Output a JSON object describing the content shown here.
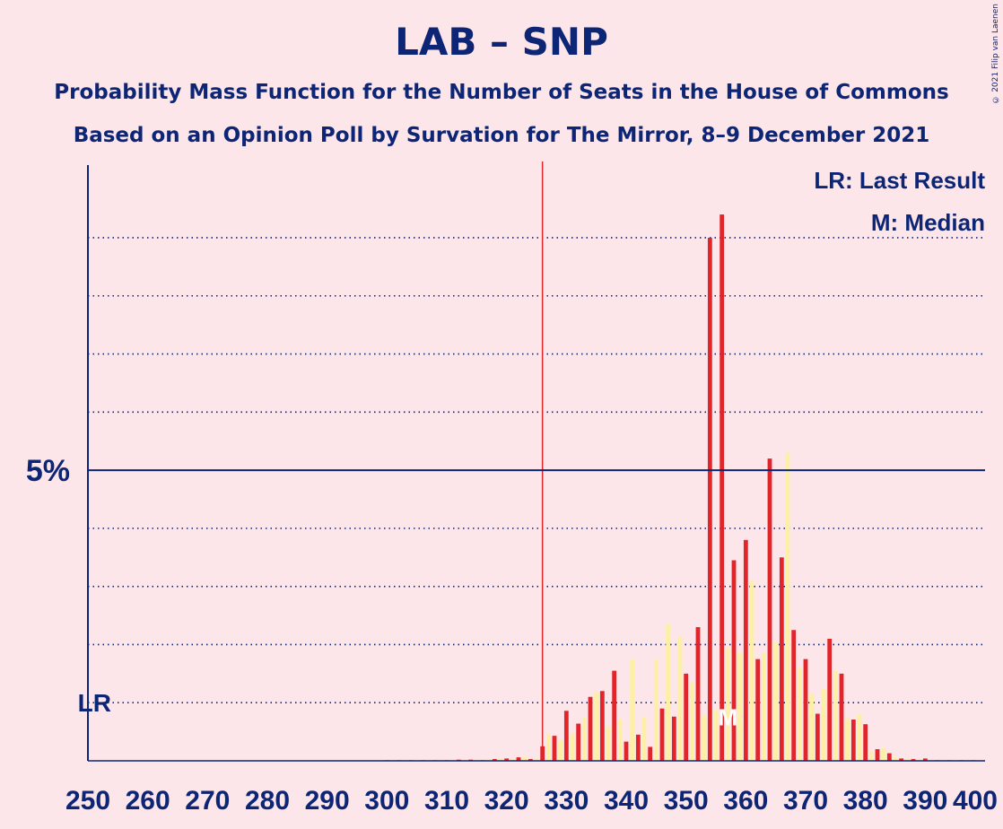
{
  "title": "LAB – SNP",
  "subtitle1": "Probability Mass Function for the Number of Seats in the House of Commons",
  "subtitle2": "Based on an Opinion Poll by Survation for The Mirror, 8–9 December 2021",
  "copyright": "© 2021 Filip van Laenen",
  "colors": {
    "background": "#fde6ea",
    "text": "#0d2575",
    "bar_a": "#e0262a",
    "bar_b": "#fdf0a6",
    "last_result": "#e0262a"
  },
  "chart_data": {
    "type": "bar",
    "xlim": [
      250,
      400
    ],
    "ylim": [
      0,
      10.25
    ],
    "x_ticks": [
      "250",
      "260",
      "270",
      "280",
      "290",
      "300",
      "310",
      "320",
      "330",
      "340",
      "350",
      "360",
      "370",
      "380",
      "390",
      "400"
    ],
    "y_tick_label": "5%",
    "y_tick_value": 5,
    "gridlines": [
      1,
      2,
      3,
      4,
      6,
      7,
      8,
      9
    ],
    "legend": [
      "LR: Last Result",
      "M: Median"
    ],
    "last_result": {
      "label": "LR",
      "seat": 326,
      "lr_level": 1
    },
    "median": {
      "label": "M",
      "seat": 357
    },
    "x": [
      300,
      301,
      302,
      303,
      304,
      305,
      306,
      307,
      308,
      309,
      310,
      311,
      312,
      313,
      314,
      315,
      316,
      317,
      318,
      319,
      320,
      321,
      322,
      323,
      324,
      325,
      326,
      327,
      328,
      329,
      330,
      331,
      332,
      333,
      334,
      335,
      336,
      337,
      338,
      339,
      340,
      341,
      342,
      343,
      344,
      345,
      346,
      347,
      348,
      349,
      350,
      351,
      352,
      353,
      354,
      355,
      356,
      357,
      358,
      359,
      360,
      361,
      362,
      363,
      364,
      365,
      366,
      367,
      368,
      369,
      370,
      371,
      372,
      373,
      374,
      375,
      376,
      377,
      378,
      379,
      380,
      381,
      382,
      383,
      384,
      385,
      386,
      387,
      388,
      389,
      390,
      391,
      392,
      393,
      394,
      395,
      396,
      397,
      398,
      399
    ],
    "values": [
      0.01,
      0.01,
      0.01,
      0.01,
      0.01,
      0.01,
      0.01,
      0.01,
      0.01,
      0.01,
      0.01,
      0.01,
      0.02,
      0.01,
      0.02,
      0.02,
      0.01,
      0.02,
      0.03,
      0.03,
      0.04,
      0.04,
      0.06,
      0.07,
      0.03,
      0.04,
      0.25,
      0.46,
      0.43,
      0.36,
      0.86,
      0.47,
      0.64,
      0.75,
      1.1,
      1.18,
      1.2,
      0.6,
      1.55,
      0.71,
      0.33,
      1.75,
      0.45,
      0.76,
      0.24,
      1.75,
      0.9,
      2.35,
      0.76,
      2.15,
      1.5,
      1.35,
      2.3,
      0.77,
      9.0,
      0.87,
      9.4,
      1.95,
      3.45,
      1.85,
      3.8,
      3.1,
      1.75,
      1.85,
      5.2,
      2.05,
      3.5,
      5.3,
      2.25,
      1.6,
      1.75,
      1.15,
      0.81,
      1.25,
      2.1,
      1.55,
      1.5,
      0.73,
      0.71,
      0.8,
      0.63,
      0.16,
      0.2,
      0.22,
      0.13,
      0.06,
      0.04,
      0.04,
      0.03,
      0.02,
      0.04,
      0.01,
      0.01,
      0.01,
      0.01,
      0.01,
      0.01,
      0.01,
      0.01,
      0.01
    ]
  }
}
